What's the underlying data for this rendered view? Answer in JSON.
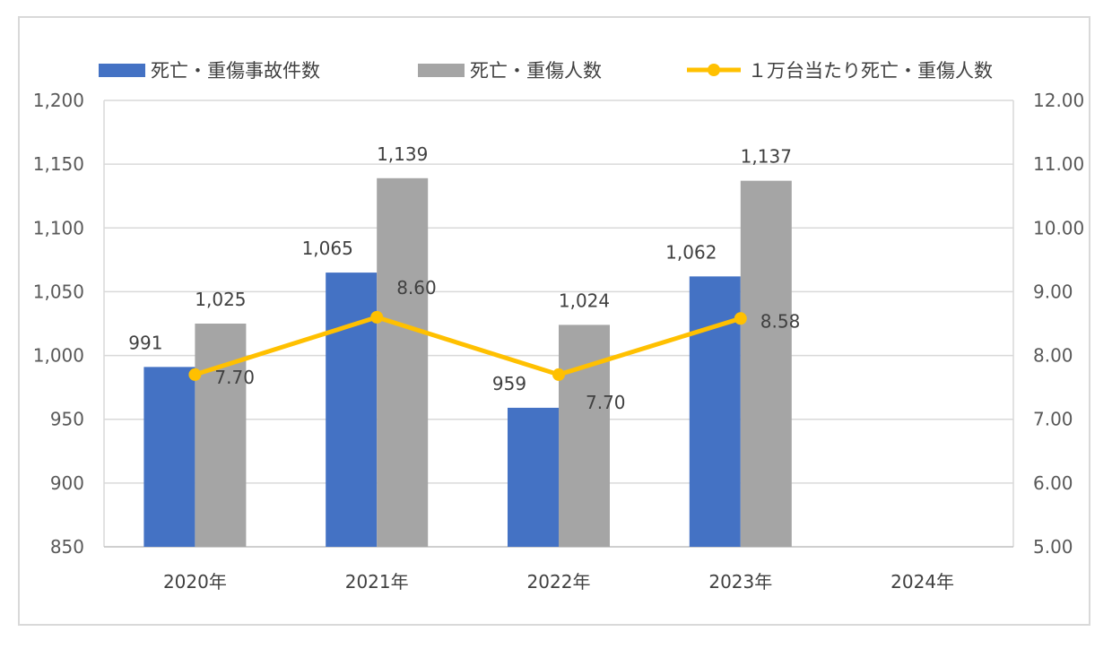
{
  "chart_data": {
    "type": "bar",
    "categories": [
      "2020年",
      "2021年",
      "2022年",
      "2023年",
      "2024年"
    ],
    "series": [
      {
        "name": "死亡・重傷事故件数",
        "kind": "bar",
        "axis": "left",
        "color": "#4472c4",
        "values": [
          991,
          1065,
          959,
          1062,
          null
        ],
        "labels": [
          "991",
          "1,065",
          "959",
          "1,062",
          ""
        ]
      },
      {
        "name": "死亡・重傷人数",
        "kind": "bar",
        "axis": "left",
        "color": "#a5a5a5",
        "values": [
          1025,
          1139,
          1024,
          1137,
          null
        ],
        "labels": [
          "1,025",
          "1,139",
          "1,024",
          "1,137",
          ""
        ]
      },
      {
        "name": "１万台当たり死亡・重傷人数",
        "kind": "line",
        "axis": "right",
        "color": "#ffc000",
        "values": [
          7.7,
          8.6,
          7.7,
          8.58,
          null
        ],
        "labels": [
          "7.70",
          "8.60",
          "7.70",
          "8.58",
          ""
        ]
      }
    ],
    "y_left": {
      "ylim": [
        850,
        1200
      ],
      "ticks": [
        "850",
        "900",
        "950",
        "1,000",
        "1,050",
        "1,100",
        "1,150",
        "1,200"
      ]
    },
    "y_right": {
      "ylim": [
        5.0,
        12.0
      ],
      "ticks": [
        "5.00",
        "6.00",
        "7.00",
        "8.00",
        "9.00",
        "10.00",
        "11.00",
        "12.00"
      ]
    },
    "legend_position": "top",
    "grid": true
  }
}
